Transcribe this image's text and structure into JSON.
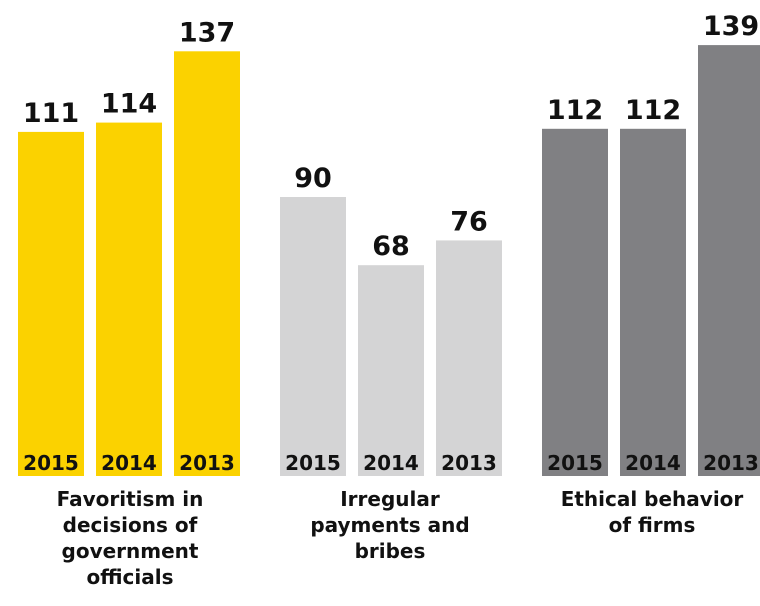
{
  "chart_data": {
    "type": "bar",
    "categories": [
      "2015",
      "2014",
      "2013"
    ],
    "groups": [
      {
        "label_lines": [
          "Favoritism in",
          "decisions of",
          "government",
          "officials"
        ],
        "values": [
          111,
          114,
          137
        ],
        "color": "#FBD200"
      },
      {
        "label_lines": [
          "Irregular",
          "payments and",
          "bribes"
        ],
        "values": [
          90,
          68,
          76
        ],
        "color": "#D4D4D5"
      },
      {
        "label_lines": [
          "Ethical behavior",
          "of firms"
        ],
        "values": [
          112,
          112,
          139
        ],
        "color": "#808083"
      }
    ],
    "title": "",
    "xlabel": "",
    "ylabel": "",
    "ylim": [
      0,
      140
    ],
    "grid": false,
    "legend": "none"
  }
}
